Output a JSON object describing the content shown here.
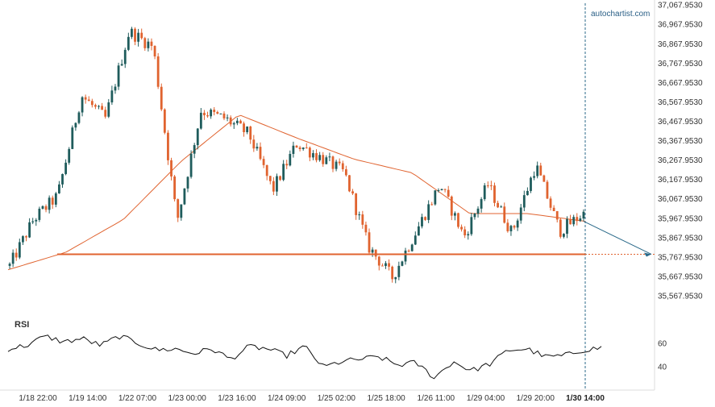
{
  "brand": {
    "text": "autochartist.com"
  },
  "colors": {
    "bull": "#1f5c5c",
    "bear": "#e0632f",
    "ma": "#e0632f",
    "level": "#e0632f",
    "forecast": "#2b6a8a",
    "rsi": "#111111",
    "axis": "#dddddd"
  },
  "chart_data": {
    "type": "candlestick",
    "title": "",
    "y_axis": {
      "ticks": [
        "37,067.9530",
        "36,967.9530",
        "36,867.9530",
        "36,767.9530",
        "36,667.9530",
        "36,567.9530",
        "36,467.9530",
        "36,367.9530",
        "36,267.9530",
        "36,167.9530",
        "36,067.9530",
        "35,967.9530",
        "35,867.9530",
        "35,767.9530",
        "35,667.9530",
        "35,567.9530"
      ],
      "ylim": [
        35520,
        37075
      ]
    },
    "x_axis": {
      "ticks": [
        "1/18 22:00",
        "1/19 14:00",
        "1/22 07:00",
        "1/23 00:00",
        "1/23 16:00",
        "1/24 09:00",
        "1/25 02:00",
        "1/25 18:00",
        "1/26 11:00",
        "1/29 04:00",
        "1/29 20:00",
        "1/30 14:00"
      ],
      "current_tick": "1/30 14:00"
    },
    "support_level": 35780,
    "support_start_tick": "1/18 22:00",
    "forecast": {
      "from": 35950,
      "to": 35780
    },
    "moving_average_anchors": [
      35700,
      35790,
      35960,
      36260,
      36500,
      36380,
      36270,
      36200,
      35990,
      35990,
      35950
    ],
    "price_anchors": [
      35720,
      35960,
      36080,
      36600,
      36480,
      36930,
      36850,
      35950,
      36520,
      36480,
      36400,
      36110,
      36350,
      36280,
      36200,
      35820,
      35660,
      35900,
      36140,
      35870,
      36140,
      35890,
      36240,
      35900,
      35990
    ],
    "rsi": {
      "label": "RSI",
      "ticks": [
        "60",
        "40"
      ],
      "ylim": [
        22,
        78
      ],
      "anchors": [
        55,
        58,
        66,
        61,
        64,
        58,
        66,
        60,
        54,
        55,
        51,
        55,
        46,
        57,
        55,
        49,
        57,
        39,
        44,
        46,
        48,
        41,
        43,
        30,
        44,
        36,
        42,
        54,
        55,
        48,
        49,
        54,
        56
      ]
    }
  }
}
